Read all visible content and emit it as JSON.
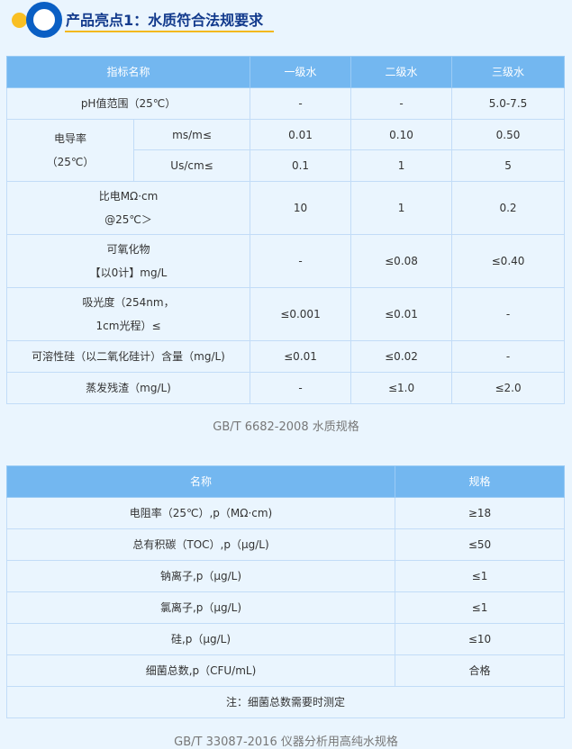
{
  "header": {
    "title": "产品亮点1：水质符合法规要求",
    "colors": {
      "accent": "#0a5fc4",
      "dot": "#f9bf23",
      "table_header": "#73b7f0"
    }
  },
  "table1": {
    "headers": [
      "指标名称",
      "一级水",
      "二级水",
      "三级水"
    ],
    "rows": [
      {
        "name": "pH值范围（25℃）",
        "v": [
          "-",
          "-",
          "5.0-7.5"
        ]
      },
      {
        "name": "电导率",
        "name2": "（25℃）",
        "sub": [
          {
            "unit": "ms/m≤",
            "v": [
              "0.01",
              "0.10",
              "0.50"
            ]
          },
          {
            "unit": "Us/cm≤",
            "v": [
              "0.1",
              "1",
              "5"
            ]
          }
        ]
      },
      {
        "name": "比电MΩ·cm",
        "name2": "@25℃＞",
        "v": [
          "10",
          "1",
          "0.2"
        ]
      },
      {
        "name": "可氧化物",
        "name2": "【以0计】mg/L",
        "v": [
          "-",
          "≤0.08",
          "≤0.40"
        ]
      },
      {
        "name": "吸光度（254nm，",
        "name2": "1cm光程）≤",
        "v": [
          "≤0.001",
          "≤0.01",
          "-"
        ]
      },
      {
        "name": "可溶性硅（以二氧化硅计）含量（mg/L)",
        "v": [
          "≤0.01",
          "≤0.02",
          "-"
        ]
      },
      {
        "name": "蒸发残渣（mg/L)",
        "v": [
          "-",
          "≤1.0",
          "≤2.0"
        ]
      }
    ],
    "caption": "GB/T 6682-2008 水质规格"
  },
  "table2": {
    "headers": [
      "名称",
      "规格"
    ],
    "rows": [
      [
        "电阻率（25℃）,p（MΩ·cm)",
        "≥18"
      ],
      [
        "总有积碳（TOC）,p（μg/L)",
        "≤50"
      ],
      [
        "钠离子,p（μg/L)",
        "≤1"
      ],
      [
        "氯离子,p（μg/L)",
        "≤1"
      ],
      [
        "硅,p（μg/L)",
        "≤10"
      ],
      [
        "细菌总数,p（CFU/mL)",
        "合格"
      ]
    ],
    "note": "注：细菌总数需要时测定",
    "caption": "GB/T 33087-2016 仪器分析用高纯水规格"
  }
}
